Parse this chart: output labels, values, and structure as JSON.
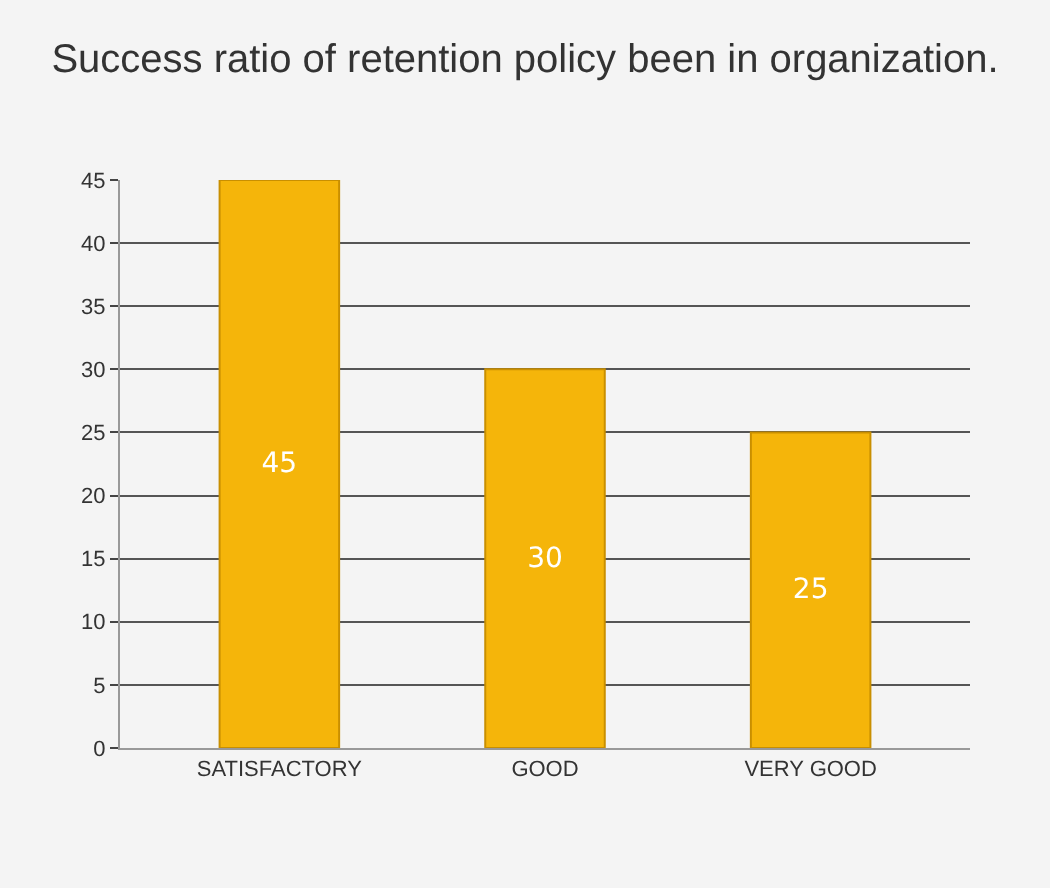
{
  "chart_data": {
    "type": "bar",
    "title": "Success ratio of retention policy been in organization.",
    "categories": [
      "SATISFACTORY",
      "GOOD",
      "VERY GOOD"
    ],
    "values": [
      45,
      30,
      25
    ],
    "color": "#f5b50a",
    "ylim": [
      0,
      45
    ],
    "yticks": [
      0,
      5,
      10,
      15,
      20,
      25,
      30,
      35,
      40,
      45
    ],
    "grid": true,
    "data_labels": true
  }
}
